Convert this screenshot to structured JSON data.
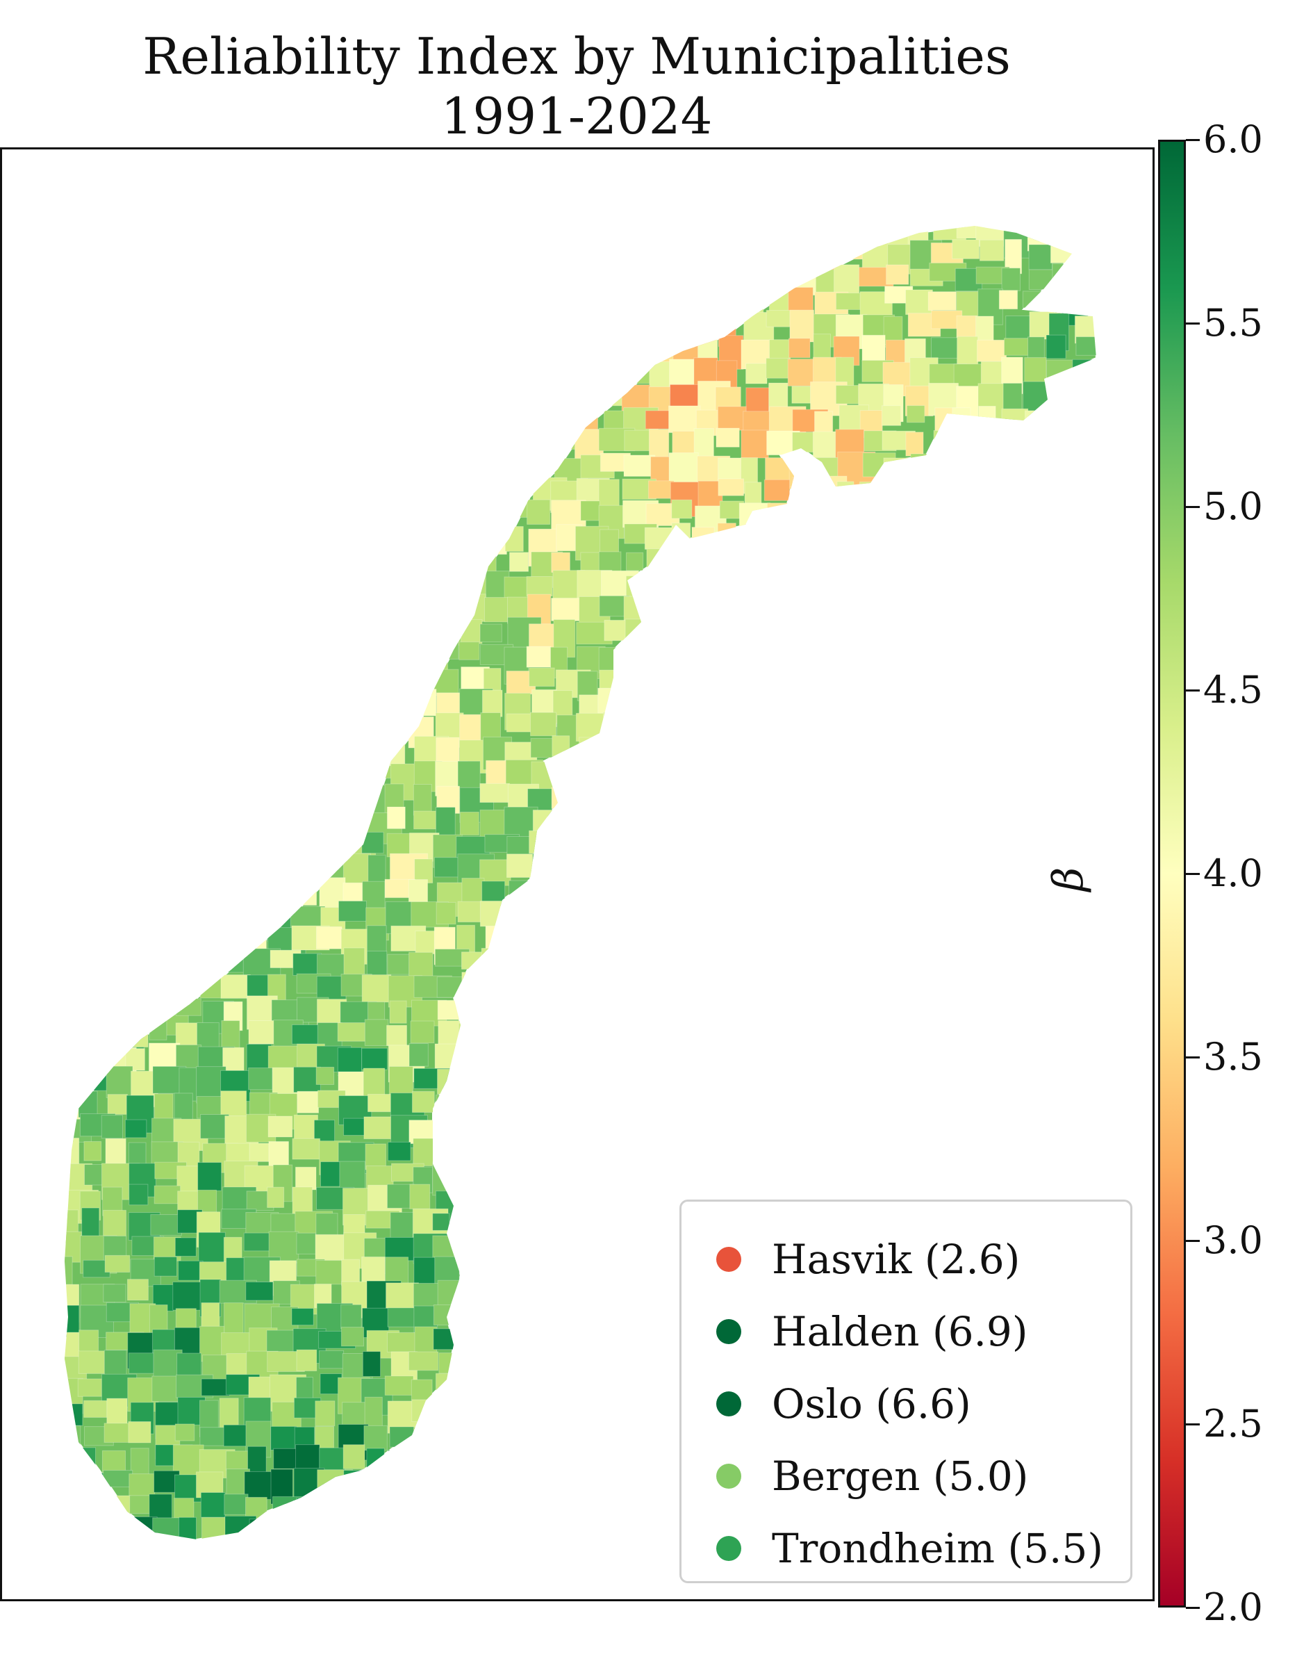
{
  "title": {
    "line1": "Reliability Index by Municipalities",
    "line2": "1991-2024"
  },
  "colorbar": {
    "label": "β",
    "ticks": [
      "2.0",
      "2.5",
      "3.0",
      "3.5",
      "4.0",
      "4.5",
      "5.0",
      "5.5",
      "6.0"
    ],
    "min": 2.0,
    "max": 6.0,
    "colormap": "RdYlGn",
    "gradient_colors": [
      "#a50026",
      "#d73027",
      "#f46d43",
      "#fdae61",
      "#fee08b",
      "#ffffbf",
      "#d9ef8b",
      "#a6d96a",
      "#66bd63",
      "#1a9850",
      "#006837"
    ]
  },
  "legend": {
    "items": [
      {
        "label": "Hasvik (2.6)",
        "color": "#e8533a"
      },
      {
        "label": "Halden (6.9)",
        "color": "#006837"
      },
      {
        "label": "Oslo (6.6)",
        "color": "#006837"
      },
      {
        "label": "Bergen (5.0)",
        "color": "#86cb66"
      },
      {
        "label": "Trondheim (5.5)",
        "color": "#2ea354"
      }
    ]
  },
  "map": {
    "land_color": "#6fbf5e"
  }
}
